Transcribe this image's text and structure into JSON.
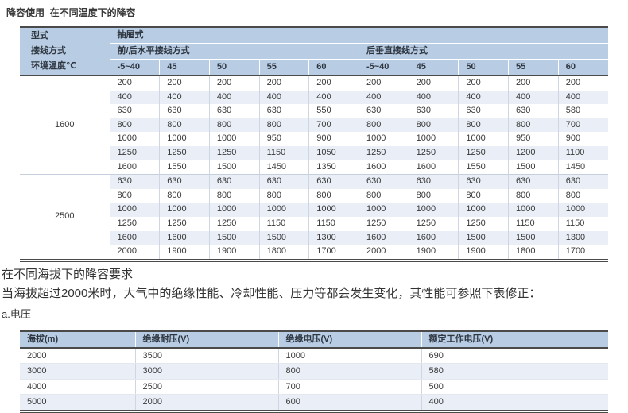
{
  "page": {
    "title": "降容使用  在不同温度下的降容"
  },
  "table1": {
    "corner_lines": [
      "型式",
      "接线方式",
      "环境温度℃"
    ],
    "top_header": "抽屉式",
    "group_headers": [
      "前/后水平接线方式",
      "后垂直接线方式"
    ],
    "temp_columns": [
      "-5~40",
      "45",
      "50",
      "55",
      "60",
      "-5~40",
      "45",
      "50",
      "55",
      "60"
    ],
    "row_groups": [
      {
        "label": "1600",
        "rows": [
          [
            "200",
            "200",
            "200",
            "200",
            "200",
            "200",
            "200",
            "200",
            "200",
            "200"
          ],
          [
            "400",
            "400",
            "400",
            "400",
            "400",
            "400",
            "400",
            "400",
            "400",
            "400"
          ],
          [
            "630",
            "630",
            "630",
            "630",
            "550",
            "630",
            "630",
            "630",
            "630",
            "580"
          ],
          [
            "800",
            "800",
            "800",
            "800",
            "700",
            "800",
            "800",
            "800",
            "800",
            "700"
          ],
          [
            "1000",
            "1000",
            "1000",
            "950",
            "900",
            "1000",
            "1000",
            "1000",
            "950",
            "900"
          ],
          [
            "1250",
            "1250",
            "1250",
            "1150",
            "1050",
            "1250",
            "1250",
            "1250",
            "1200",
            "1100"
          ],
          [
            "1600",
            "1550",
            "1500",
            "1450",
            "1350",
            "1600",
            "1600",
            "1550",
            "1500",
            "1450"
          ]
        ]
      },
      {
        "label": "2500",
        "rows": [
          [
            "630",
            "630",
            "630",
            "630",
            "630",
            "630",
            "630",
            "630",
            "630",
            "630"
          ],
          [
            "800",
            "800",
            "800",
            "800",
            "800",
            "800",
            "800",
            "800",
            "800",
            "800"
          ],
          [
            "1000",
            "1000",
            "1000",
            "1000",
            "1000",
            "1000",
            "1000",
            "1000",
            "1000",
            "1000"
          ],
          [
            "1250",
            "1250",
            "1250",
            "1150",
            "1150",
            "1250",
            "1250",
            "1250",
            "1150",
            "1150"
          ],
          [
            "1600",
            "1600",
            "1500",
            "1500",
            "1300",
            "1600",
            "1600",
            "1500",
            "1500",
            "1300"
          ],
          [
            "2000",
            "1900",
            "1900",
            "1800",
            "1700",
            "2000",
            "1900",
            "1900",
            "1800",
            "1700"
          ]
        ]
      }
    ]
  },
  "section": {
    "heading": "在不同海拔下的降容要求",
    "paragraph": "当海拔超过2000米时，大气中的绝缘性能、冷却性能、压力等都会发生变化，其性能可参照下表修正：",
    "sublabel": "a.电压"
  },
  "table2": {
    "headers": [
      "海拔(m)",
      "绝缘耐压(V)",
      "绝缘电压(V)",
      "额定工作电压(V)"
    ],
    "rows": [
      [
        "2000",
        "3500",
        "1000",
        "690"
      ],
      [
        "3000",
        "3000",
        "800",
        "580"
      ],
      [
        "4000",
        "2500",
        "700",
        "500"
      ],
      [
        "5000",
        "2000",
        "600",
        "400"
      ]
    ]
  },
  "colors": {
    "header_blue": "#b8cce4",
    "stripe_blue": "#e9eef7",
    "dark_border": "#4a4a4a"
  }
}
